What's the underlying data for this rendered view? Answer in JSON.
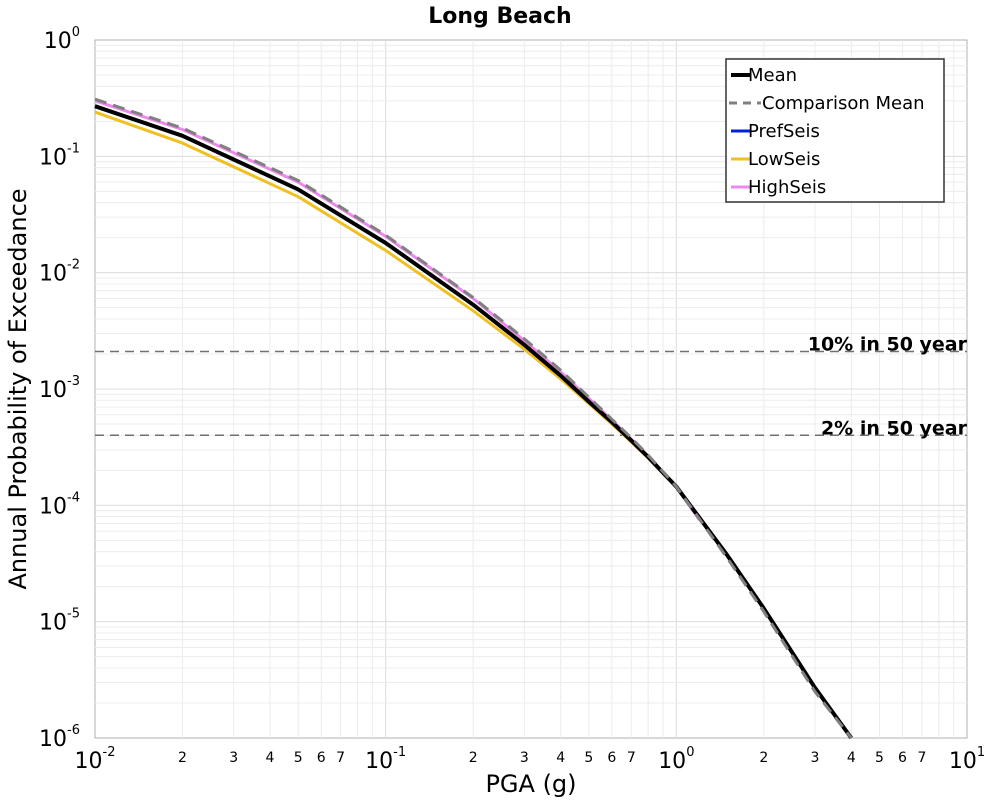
{
  "chart_data": {
    "type": "line",
    "title": "Long Beach",
    "xlabel": "PGA (g)",
    "ylabel": "Annual Probability of Exceedance",
    "x_scale": "log",
    "y_scale": "log",
    "xlim": [
      0.01,
      10
    ],
    "ylim": [
      1e-06,
      1
    ],
    "grid": true,
    "legend_position": "top-right",
    "x_major_ticks": [
      {
        "base": "10",
        "exp": "-2"
      },
      {
        "base": "10",
        "exp": "-1"
      },
      {
        "base": "10",
        "exp": "0"
      },
      {
        "base": "10",
        "exp": "1"
      }
    ],
    "y_major_ticks": [
      {
        "base": "10",
        "exp": "0"
      },
      {
        "base": "10",
        "exp": "-1"
      },
      {
        "base": "10",
        "exp": "-2"
      },
      {
        "base": "10",
        "exp": "-3"
      },
      {
        "base": "10",
        "exp": "-4"
      },
      {
        "base": "10",
        "exp": "-5"
      },
      {
        "base": "10",
        "exp": "-6"
      }
    ],
    "x_minor_tick_labels": [
      "2",
      "3",
      "4",
      "5",
      "6",
      "7"
    ],
    "series": [
      {
        "name": "Mean",
        "color": "#000000",
        "style": "solid",
        "width": 4,
        "x": [
          0.01,
          0.02,
          0.05,
          0.1,
          0.2,
          0.3,
          0.4,
          0.5,
          0.6,
          0.7,
          0.8,
          1.0,
          1.5,
          2.0,
          3.0,
          4.0
        ],
        "y": [
          0.27,
          0.15,
          0.052,
          0.018,
          0.0053,
          0.0024,
          0.0013,
          0.00078,
          0.00052,
          0.00036,
          0.00026,
          0.000145,
          3.7e-05,
          1.3e-05,
          2.7e-06,
          8.5e-07
        ]
      },
      {
        "name": "Comparison Mean",
        "color": "#808080",
        "style": "dashed",
        "width": 3,
        "x": [
          0.01,
          0.02,
          0.05,
          0.1,
          0.2,
          0.3,
          0.4,
          0.5,
          0.6,
          0.7,
          0.8,
          1.0,
          1.5,
          2.0,
          3.0,
          4.0
        ],
        "y": [
          0.31,
          0.175,
          0.062,
          0.021,
          0.0061,
          0.0027,
          0.00145,
          0.00085,
          0.00055,
          0.00038,
          0.00027,
          0.000145,
          3.5e-05,
          1.22e-05,
          2.5e-06,
          8e-07
        ]
      },
      {
        "name": "PrefSeis",
        "color": "#0022dd",
        "style": "solid",
        "width": 3,
        "x": [
          0.01,
          0.02,
          0.05,
          0.1,
          0.2,
          0.3,
          0.4,
          0.5,
          0.6,
          0.7,
          0.8,
          1.0,
          1.5,
          2.0,
          3.0,
          4.0
        ],
        "y": [
          0.27,
          0.15,
          0.052,
          0.018,
          0.0053,
          0.0024,
          0.0013,
          0.00078,
          0.00052,
          0.00036,
          0.00026,
          0.000145,
          3.7e-05,
          1.3e-05,
          2.7e-06,
          8.5e-07
        ]
      },
      {
        "name": "LowSeis",
        "color": "#f0c020",
        "style": "solid",
        "width": 3,
        "x": [
          0.01,
          0.02,
          0.05,
          0.1,
          0.2,
          0.3,
          0.4,
          0.5,
          0.6,
          0.7,
          0.8,
          1.0
        ],
        "y": [
          0.24,
          0.13,
          0.045,
          0.0155,
          0.0047,
          0.0022,
          0.00122,
          0.00075,
          0.0005,
          0.00035,
          0.000255,
          0.000143
        ]
      },
      {
        "name": "HighSeis",
        "color": "#ee88ee",
        "style": "solid",
        "width": 3,
        "x": [
          0.01,
          0.02,
          0.05,
          0.1,
          0.2,
          0.3,
          0.4,
          0.5,
          0.6,
          0.7,
          0.8,
          1.0,
          1.2
        ],
        "y": [
          0.3,
          0.17,
          0.06,
          0.0205,
          0.006,
          0.0026,
          0.0014,
          0.00083,
          0.00054,
          0.00037,
          0.000265,
          0.000145,
          7.5e-05
        ]
      }
    ],
    "reference_lines": [
      {
        "label": "10% in 50 year",
        "y": 0.0021,
        "color": "#707070"
      },
      {
        "label": "2% in 50 year",
        "y": 0.0004,
        "color": "#707070"
      }
    ]
  }
}
